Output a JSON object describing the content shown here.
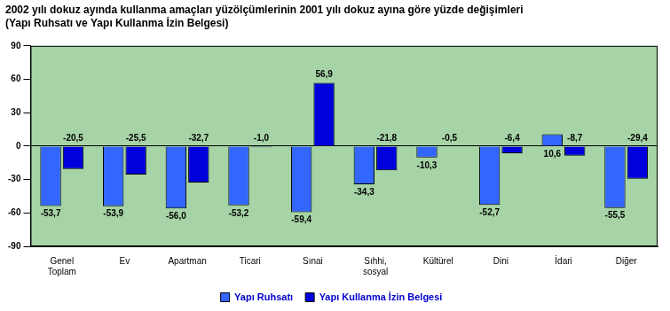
{
  "chart_data": {
    "type": "bar",
    "title": "2002 yılı dokuz ayında kullanma amaçları yüzölçümlerinin 2001 yılı dokuz ayına göre yüzde değişimleri",
    "subtitle": "(Yapı Ruhsatı ve Yapı Kullanma İzin Belgesi)",
    "categories": [
      "Genel Toplam",
      "Ev",
      "Apartman",
      "Ticari",
      "Sınai",
      "Sıhhi, sosyal",
      "Kültürel",
      "Dini",
      "İdari",
      "Diğer"
    ],
    "series": [
      {
        "name": "Yapı Ruhsatı",
        "color": "#3366ff",
        "values": [
          -53.7,
          -53.9,
          -56.0,
          -53.2,
          -59.4,
          -34.3,
          -10.3,
          -52.7,
          10.6,
          -55.5
        ],
        "value_labels": [
          "-53,7",
          "-53,9",
          "-56,0",
          "-53,2",
          "-59,4",
          "-34,3",
          "-10,3",
          "-52,7",
          "10,6",
          "-55,5"
        ]
      },
      {
        "name": "Yapı Kullanma İzin Belgesi",
        "color": "#0000dd",
        "values": [
          -20.5,
          -25.5,
          -32.7,
          -1.0,
          56.9,
          -21.8,
          -0.5,
          -6.4,
          -8.7,
          -29.4
        ],
        "value_labels": [
          "-20,5",
          "-25,5",
          "-32,7",
          "-1,0",
          "56,9",
          "-21,8",
          "-0,5",
          "-6,4",
          "-8,7",
          "-29,4"
        ]
      }
    ],
    "ylim": [
      -90,
      90
    ],
    "yticks": [
      -90,
      -60,
      -30,
      0,
      30,
      60,
      90
    ],
    "grid": false,
    "legend": "bottom",
    "data_labels": true
  }
}
